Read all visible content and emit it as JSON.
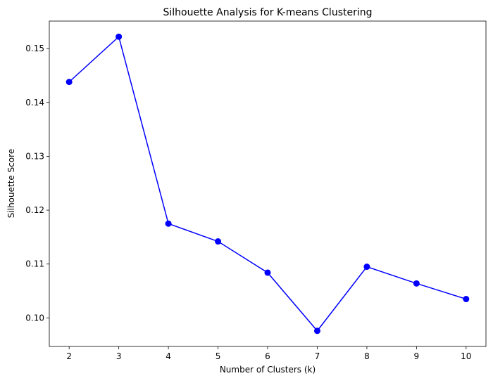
{
  "chart_data": {
    "type": "line",
    "title": "Silhouette Analysis for K-means Clustering",
    "xlabel": "Number of Clusters (k)",
    "ylabel": "Silhouette Score",
    "x": [
      2,
      3,
      4,
      5,
      6,
      7,
      8,
      9,
      10
    ],
    "series": [
      {
        "values": [
          0.1438,
          0.1522,
          0.1175,
          0.1142,
          0.1084,
          0.0976,
          0.1095,
          0.1064,
          0.1035
        ],
        "color": "#0000ff",
        "marker": "circle"
      }
    ],
    "xlim": [
      1.6,
      10.4
    ],
    "ylim": [
      0.0947,
      0.1551
    ],
    "xticks": [
      "2",
      "3",
      "4",
      "5",
      "6",
      "7",
      "8",
      "9",
      "10"
    ],
    "yticks": [
      "0.10",
      "0.11",
      "0.12",
      "0.13",
      "0.14",
      "0.15"
    ],
    "grid": false,
    "legend": "none"
  }
}
